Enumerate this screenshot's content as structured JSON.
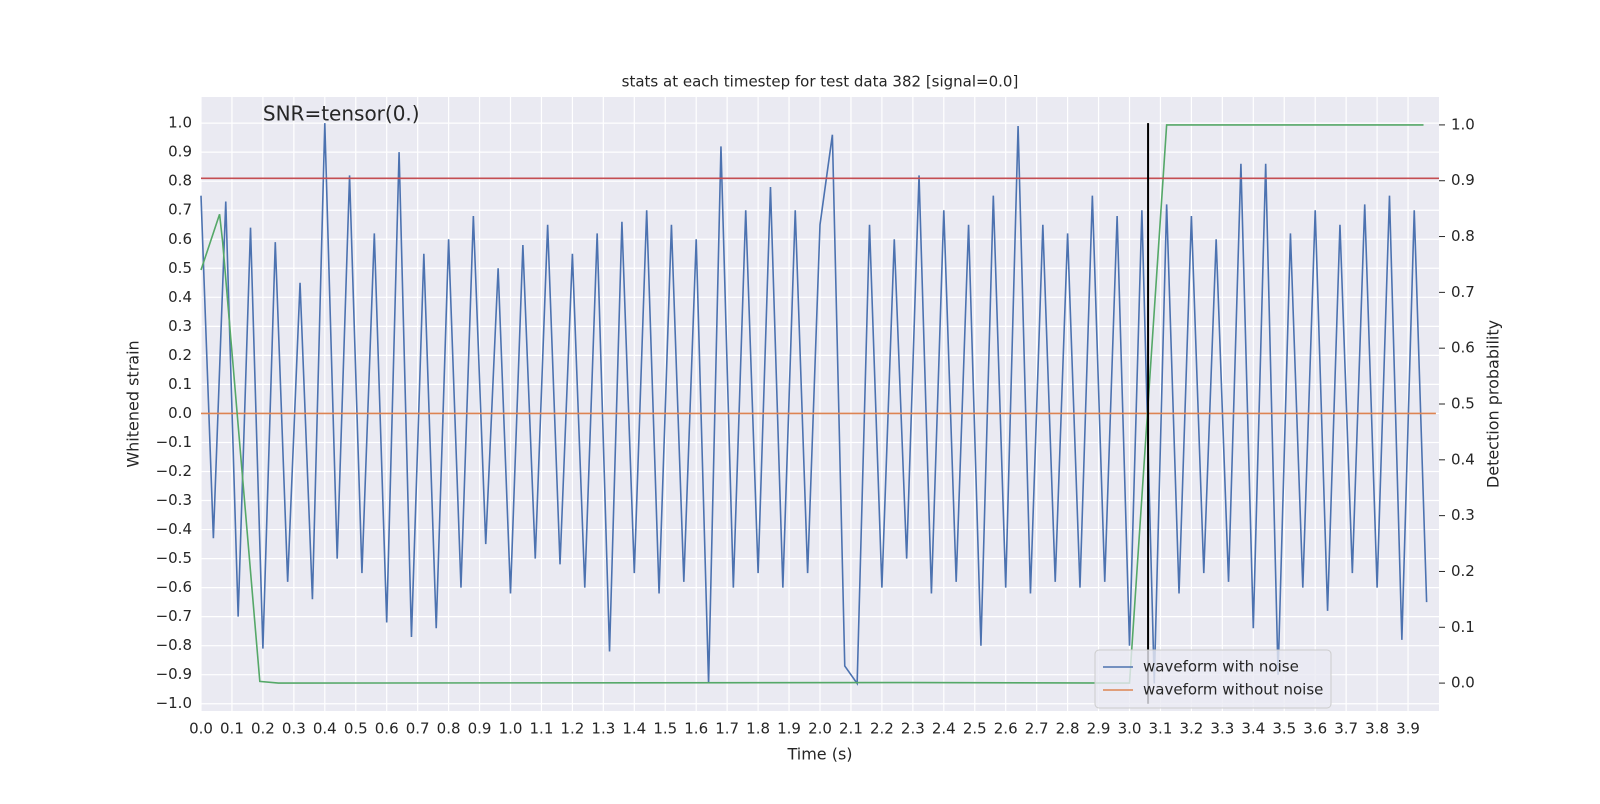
{
  "chart_data": {
    "type": "line",
    "title": "stats at each timestep for test data 382 [signal=0.0]",
    "xlabel": "Time (s)",
    "ylabel": "Whitened strain",
    "y2label": "Detection probability",
    "annotation": {
      "text": "SNR=tensor(0.)",
      "x": 0.2,
      "y": 1.0
    },
    "xlim": [
      0,
      4.0
    ],
    "ylim": [
      -1.025,
      1.09
    ],
    "y2lim": [
      -0.05,
      1.05
    ],
    "grid": true,
    "legend": "lower right",
    "xticks": [
      {
        "value": 0,
        "label": "0.0"
      },
      0.1,
      0.2,
      0.3,
      0.4,
      0.5,
      0.6,
      0.7,
      0.8,
      0.9,
      {
        "value": 1,
        "label": "1.0"
      },
      1.1,
      1.2,
      1.3,
      1.4,
      1.5,
      1.6,
      1.7,
      1.8,
      1.9,
      {
        "value": 2,
        "label": "2.0"
      },
      2.1,
      2.2,
      2.3,
      2.4,
      2.5,
      2.6,
      2.7,
      2.8,
      2.9,
      {
        "value": 3,
        "label": "3.0"
      },
      3.1,
      3.2,
      3.3,
      3.4,
      3.5,
      3.6,
      3.7,
      3.8,
      3.9
    ],
    "yticks": [
      {
        "value": -1,
        "label": "−1.0"
      },
      {
        "value": -0.9,
        "label": "−0.9"
      },
      {
        "value": -0.8,
        "label": "−0.8"
      },
      {
        "value": -0.7,
        "label": "−0.7"
      },
      {
        "value": -0.6,
        "label": "−0.6"
      },
      {
        "value": -0.5,
        "label": "−0.5"
      },
      {
        "value": -0.4,
        "label": "−0.4"
      },
      {
        "value": -0.3,
        "label": "−0.3"
      },
      {
        "value": -0.2,
        "label": "−0.2"
      },
      {
        "value": -0.1,
        "label": "−0.1"
      },
      {
        "value": 0,
        "label": "0.0"
      },
      0.1,
      0.2,
      0.3,
      0.4,
      0.5,
      0.6,
      0.7,
      0.8,
      0.9,
      {
        "value": 1,
        "label": "1.0"
      }
    ],
    "y2ticks": [
      {
        "value": 0,
        "label": "0.0"
      },
      0.1,
      0.2,
      0.3,
      0.4,
      0.5,
      0.6,
      0.7,
      0.8,
      0.9,
      {
        "value": 1,
        "label": "1.0"
      }
    ],
    "series": [
      {
        "name": "waveform with noise",
        "color": "#4c72b0",
        "axis": "y",
        "x": [
          0,
          0.04,
          0.08,
          0.12,
          0.16,
          0.2,
          0.24,
          0.28,
          0.32,
          0.36,
          0.4,
          0.44,
          0.48,
          0.52,
          0.56,
          0.6,
          0.64,
          0.68,
          0.72,
          0.76,
          0.8,
          0.84,
          0.88,
          0.92,
          0.96,
          1.0,
          1.04,
          1.08,
          1.12,
          1.16,
          1.2,
          1.24,
          1.28,
          1.32,
          1.36,
          1.4,
          1.44,
          1.48,
          1.52,
          1.56,
          1.6,
          1.64,
          1.68,
          1.72,
          1.76,
          1.8,
          1.84,
          1.88,
          1.92,
          1.96,
          2.0,
          2.04,
          2.08,
          2.12,
          2.16,
          2.2,
          2.24,
          2.28,
          2.32,
          2.36,
          2.4,
          2.44,
          2.48,
          2.52,
          2.56,
          2.6,
          2.64,
          2.68,
          2.72,
          2.76,
          2.8,
          2.84,
          2.88,
          2.92,
          2.96,
          3.0,
          3.04,
          3.08,
          3.12,
          3.16,
          3.2,
          3.24,
          3.28,
          3.32,
          3.36,
          3.4,
          3.44,
          3.48,
          3.52,
          3.56,
          3.6,
          3.64,
          3.68,
          3.72,
          3.76,
          3.8,
          3.84,
          3.88,
          3.92,
          3.96
        ],
        "values": [
          0.75,
          -0.43,
          0.73,
          -0.7,
          0.64,
          -0.81,
          0.59,
          -0.58,
          0.45,
          -0.64,
          1.0,
          -0.5,
          0.82,
          -0.55,
          0.62,
          -0.72,
          0.9,
          -0.77,
          0.55,
          -0.74,
          0.6,
          -0.6,
          0.68,
          -0.45,
          0.5,
          -0.62,
          0.58,
          -0.5,
          0.65,
          -0.52,
          0.55,
          -0.6,
          0.62,
          -0.82,
          0.66,
          -0.55,
          0.7,
          -0.62,
          0.65,
          -0.58,
          0.6,
          -0.93,
          0.92,
          -0.6,
          0.7,
          -0.55,
          0.78,
          -0.6,
          0.7,
          -0.55,
          0.65,
          0.96,
          -0.87,
          -0.93,
          0.65,
          -0.6,
          0.6,
          -0.5,
          0.82,
          -0.62,
          0.7,
          -0.58,
          0.65,
          -0.8,
          0.75,
          -0.6,
          0.99,
          -0.62,
          0.65,
          -0.58,
          0.62,
          -0.6,
          0.75,
          -0.58,
          0.68,
          -0.8,
          0.7,
          -0.93,
          0.72,
          -0.62,
          0.68,
          -0.55,
          0.6,
          -0.58,
          0.86,
          -0.74,
          0.86,
          -0.9,
          0.62,
          -0.6,
          0.7,
          -0.68,
          0.65,
          -0.55,
          0.72,
          -0.6,
          0.75,
          -0.78,
          0.7,
          -0.65
        ]
      },
      {
        "name": "waveform without noise",
        "color": "#dd8452",
        "axis": "y",
        "x": [
          0,
          3.99
        ],
        "values": [
          0,
          0
        ]
      },
      {
        "color": "#55a868",
        "axis": "y2",
        "x": [
          0,
          0.06,
          0.07,
          0.19,
          0.25,
          2.3,
          3.0,
          3.12,
          3.95
        ],
        "values": [
          0.74,
          0.84,
          0.79,
          0.003,
          0,
          0.001,
          0,
          1.0,
          1.0
        ]
      }
    ],
    "hlines": [
      {
        "y": 0.81,
        "color": "#c44e52"
      }
    ],
    "vlines": [
      {
        "x": 3.06,
        "ymin": -1.0,
        "ymax": 1.0,
        "color": "#000000"
      }
    ]
  }
}
